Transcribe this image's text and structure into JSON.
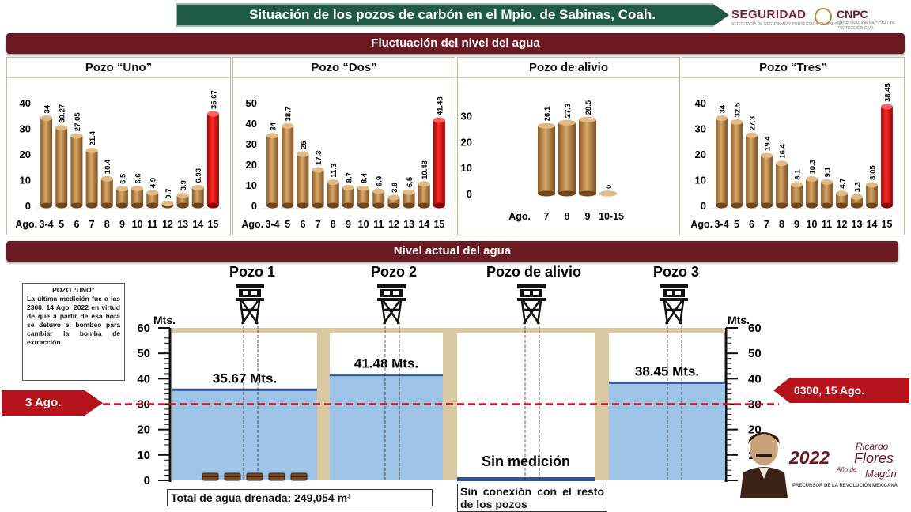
{
  "header": {
    "title": "Situación de los pozos de carbón en el Mpio. de Sabinas, Coah.",
    "logo1": "SEGURIDAD",
    "logo1_sub": "SECRETARÍA DE SEGURIDAD Y PROTECCIÓN CIUDADANA",
    "logo2": "CNPC",
    "logo2_sub": "COORDINACIÓN NACIONAL DE PROTECCIÓN CIVIL"
  },
  "section1_title": "Fluctuación del nivel del agua",
  "section2_title": "Nivel actual del agua",
  "colors": {
    "bar": "#b07a3c",
    "bar_highlight": "#e01010",
    "water": "#9dc3e6",
    "water_line": "#2f5597",
    "red_dash": "#d0161b",
    "maroon": "#6b1a22"
  },
  "chart_data": [
    {
      "type": "bar",
      "title": "Pozo “Uno”",
      "xlabel_prefix": "Ago.",
      "categories": [
        "3-4",
        "5",
        "6",
        "7",
        "8",
        "9",
        "10",
        "11",
        "12",
        "13",
        "14",
        "15"
      ],
      "values": [
        34,
        30.27,
        27.05,
        21.4,
        10.4,
        6.5,
        6.6,
        4.9,
        0.7,
        3.9,
        6.93,
        35.67
      ],
      "labels": [
        "34",
        "30.27",
        "27.05",
        "21.4",
        "10.4",
        "6.5",
        "6.6",
        "4.9",
        "0.7",
        "3.9",
        "6.93",
        "35.67"
      ],
      "highlight_index": 11,
      "yticks": [
        0,
        10,
        20,
        30,
        40
      ],
      "ylim": [
        0,
        40
      ]
    },
    {
      "type": "bar",
      "title": "Pozo “Dos”",
      "xlabel_prefix": "Ago.",
      "categories": [
        "3-4",
        "5",
        "6",
        "7",
        "8",
        "9",
        "10",
        "11",
        "12",
        "13",
        "14",
        "15"
      ],
      "values": [
        34,
        38.7,
        25,
        17.3,
        11.3,
        8.7,
        8.4,
        6.9,
        3.9,
        6.5,
        10.43,
        41.48
      ],
      "labels": [
        "34",
        "38.7",
        "25",
        "17.3",
        "11.3",
        "8.7",
        "8.4",
        "6.9",
        "3.9",
        "6.5",
        "10.43",
        "41.48"
      ],
      "highlight_index": 11,
      "yticks": [
        0,
        10,
        20,
        30,
        40,
        50
      ],
      "ylim": [
        0,
        50
      ]
    },
    {
      "type": "bar",
      "title": "Pozo de alivio",
      "xlabel_prefix": "Ago.",
      "categories": [
        "7",
        "8",
        "9",
        "10-15"
      ],
      "values": [
        26.1,
        27.3,
        28.5,
        0
      ],
      "labels": [
        "26.1",
        "27.3",
        "28.5",
        "0"
      ],
      "highlight_index": -1,
      "yticks": [
        0,
        10,
        20,
        30
      ],
      "ylim": [
        0,
        35
      ]
    },
    {
      "type": "bar",
      "title": "Pozo “Tres”",
      "xlabel_prefix": "Ago.",
      "categories": [
        "3-4",
        "5",
        "6",
        "7",
        "8",
        "9",
        "10",
        "11",
        "12",
        "13",
        "14",
        "15"
      ],
      "values": [
        34,
        32.5,
        27.3,
        19.4,
        16.4,
        8.1,
        10.3,
        9.1,
        4.7,
        3.3,
        8.05,
        38.45
      ],
      "labels": [
        "34",
        "32.5",
        "27.3",
        "19.4",
        "16.4",
        "8.1",
        "10.3",
        "9.1",
        "4.7",
        "3.3",
        "8.05",
        "38.45"
      ],
      "highlight_index": 11,
      "yticks": [
        0,
        10,
        20,
        30,
        40
      ],
      "ylim": [
        0,
        40
      ]
    },
    {
      "type": "area",
      "title": "Nivel actual del agua",
      "ylabel": "Mts.",
      "yticks": [
        0,
        10,
        20,
        30,
        40,
        50,
        60
      ],
      "ylim": [
        0,
        60
      ],
      "reference_line": {
        "value": 30,
        "left_label": "3 Ago.",
        "right_label": "0300, 15 Ago."
      },
      "wells": [
        {
          "name": "Pozo 1",
          "level": 35.67,
          "label": "35.67 Mts."
        },
        {
          "name": "Pozo 2",
          "level": 41.48,
          "label": "41.48 Mts."
        },
        {
          "name": "Pozo de alivio",
          "level": null,
          "label": "Sin medición"
        },
        {
          "name": "Pozo 3",
          "level": 38.45,
          "label": "38.45 Mts."
        }
      ]
    }
  ],
  "note": {
    "title": "POZO “UNO”",
    "text": "La última medición fue a las 2300, 14 Ago. 2022 en virtud de que a partir de esa hora se detuvo el bombeo para cambiar la bomba de extracción."
  },
  "footer": {
    "drained_label": "Total de agua drenada:",
    "drained_value": "249,054 m³",
    "no_connection": "Sin conexión con el resto de los pozos"
  },
  "commemorative": {
    "year": "2022",
    "name_small": "Ricardo",
    "name_big": "Flores",
    "name_last": "Magón",
    "subtitle": "Año de",
    "tagline": "PRECURSOR DE LA REVOLUCIÓN MEXICANA"
  }
}
